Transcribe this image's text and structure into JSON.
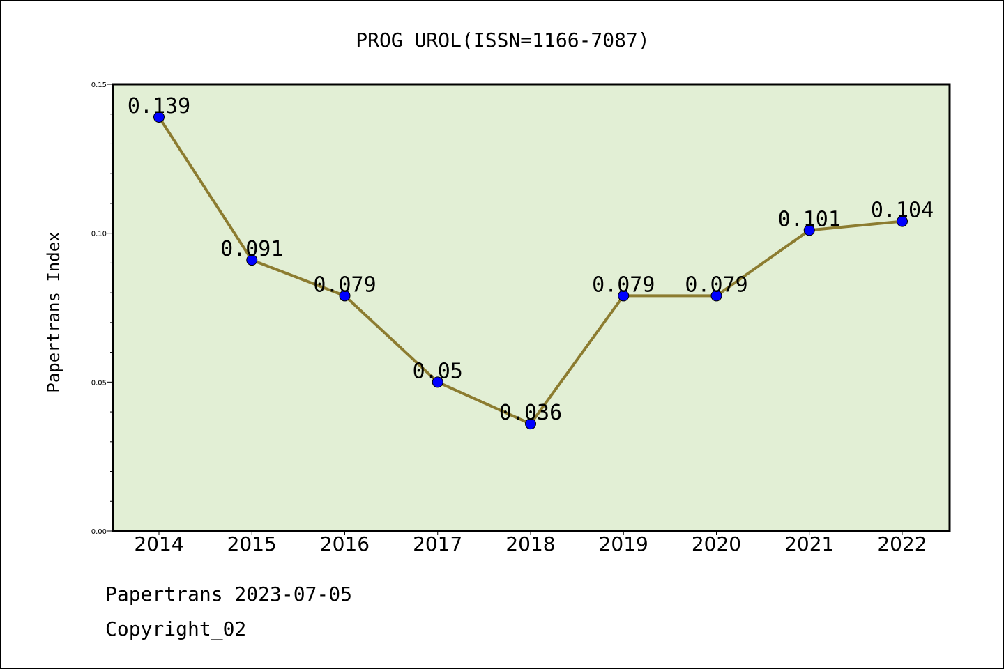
{
  "chart_data": {
    "type": "line",
    "title": "PROG UROL(ISSN=1166-7087)",
    "ylabel": "Papertrans Index",
    "xlabel": "",
    "categories": [
      "2014",
      "2015",
      "2016",
      "2017",
      "2018",
      "2019",
      "2020",
      "2021",
      "2022"
    ],
    "values": [
      0.139,
      0.091,
      0.079,
      0.05,
      0.036,
      0.079,
      0.079,
      0.101,
      0.104
    ],
    "data_labels": [
      "0.139",
      "0.091",
      "0.079",
      "0.05",
      "0.036",
      "0.079",
      "0.079",
      "0.101",
      "0.104"
    ],
    "ylim": [
      0,
      0.15
    ],
    "yticks": [
      "0.00",
      "0.05",
      "0.10",
      "0.15"
    ],
    "grid": false,
    "legend": "none",
    "colors": {
      "plot_background": "#e2efd5",
      "line": "#8c7c30",
      "marker": "#0000ff"
    }
  },
  "footer": {
    "date_text": "Papertrans 2023-07-05",
    "copyright_text": "Copyright_02"
  }
}
